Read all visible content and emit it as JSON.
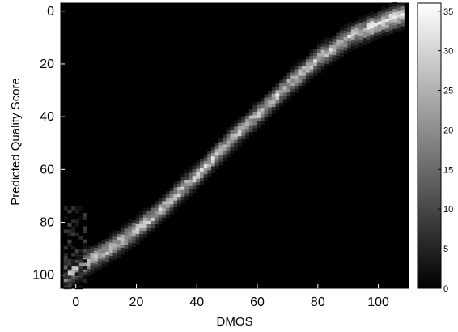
{
  "chart_data": {
    "type": "heatmap",
    "title": "",
    "xlabel": "DMOS",
    "ylabel": "Predicted Quality Score",
    "xlim": [
      -5,
      110
    ],
    "ylim": [
      105,
      -3
    ],
    "y_axis_inverted": true,
    "x_ticks": [
      0,
      20,
      40,
      60,
      80,
      100
    ],
    "y_ticks": [
      0,
      20,
      40,
      60,
      80,
      100
    ],
    "grid": false,
    "colormap": "gray",
    "background_color": "#000000",
    "colorbar": {
      "range": [
        0,
        36
      ],
      "ticks": [
        0,
        5,
        10,
        15,
        20,
        25,
        30,
        35
      ],
      "position": "right"
    },
    "ridge": {
      "description_points_x": [
        -3,
        0,
        5,
        10,
        20,
        30,
        40,
        50,
        60,
        70,
        80,
        90,
        100,
        107
      ],
      "description_points_y": [
        99,
        97,
        93,
        90,
        82,
        72,
        61,
        49,
        38,
        27,
        17,
        9,
        4,
        1
      ]
    }
  }
}
